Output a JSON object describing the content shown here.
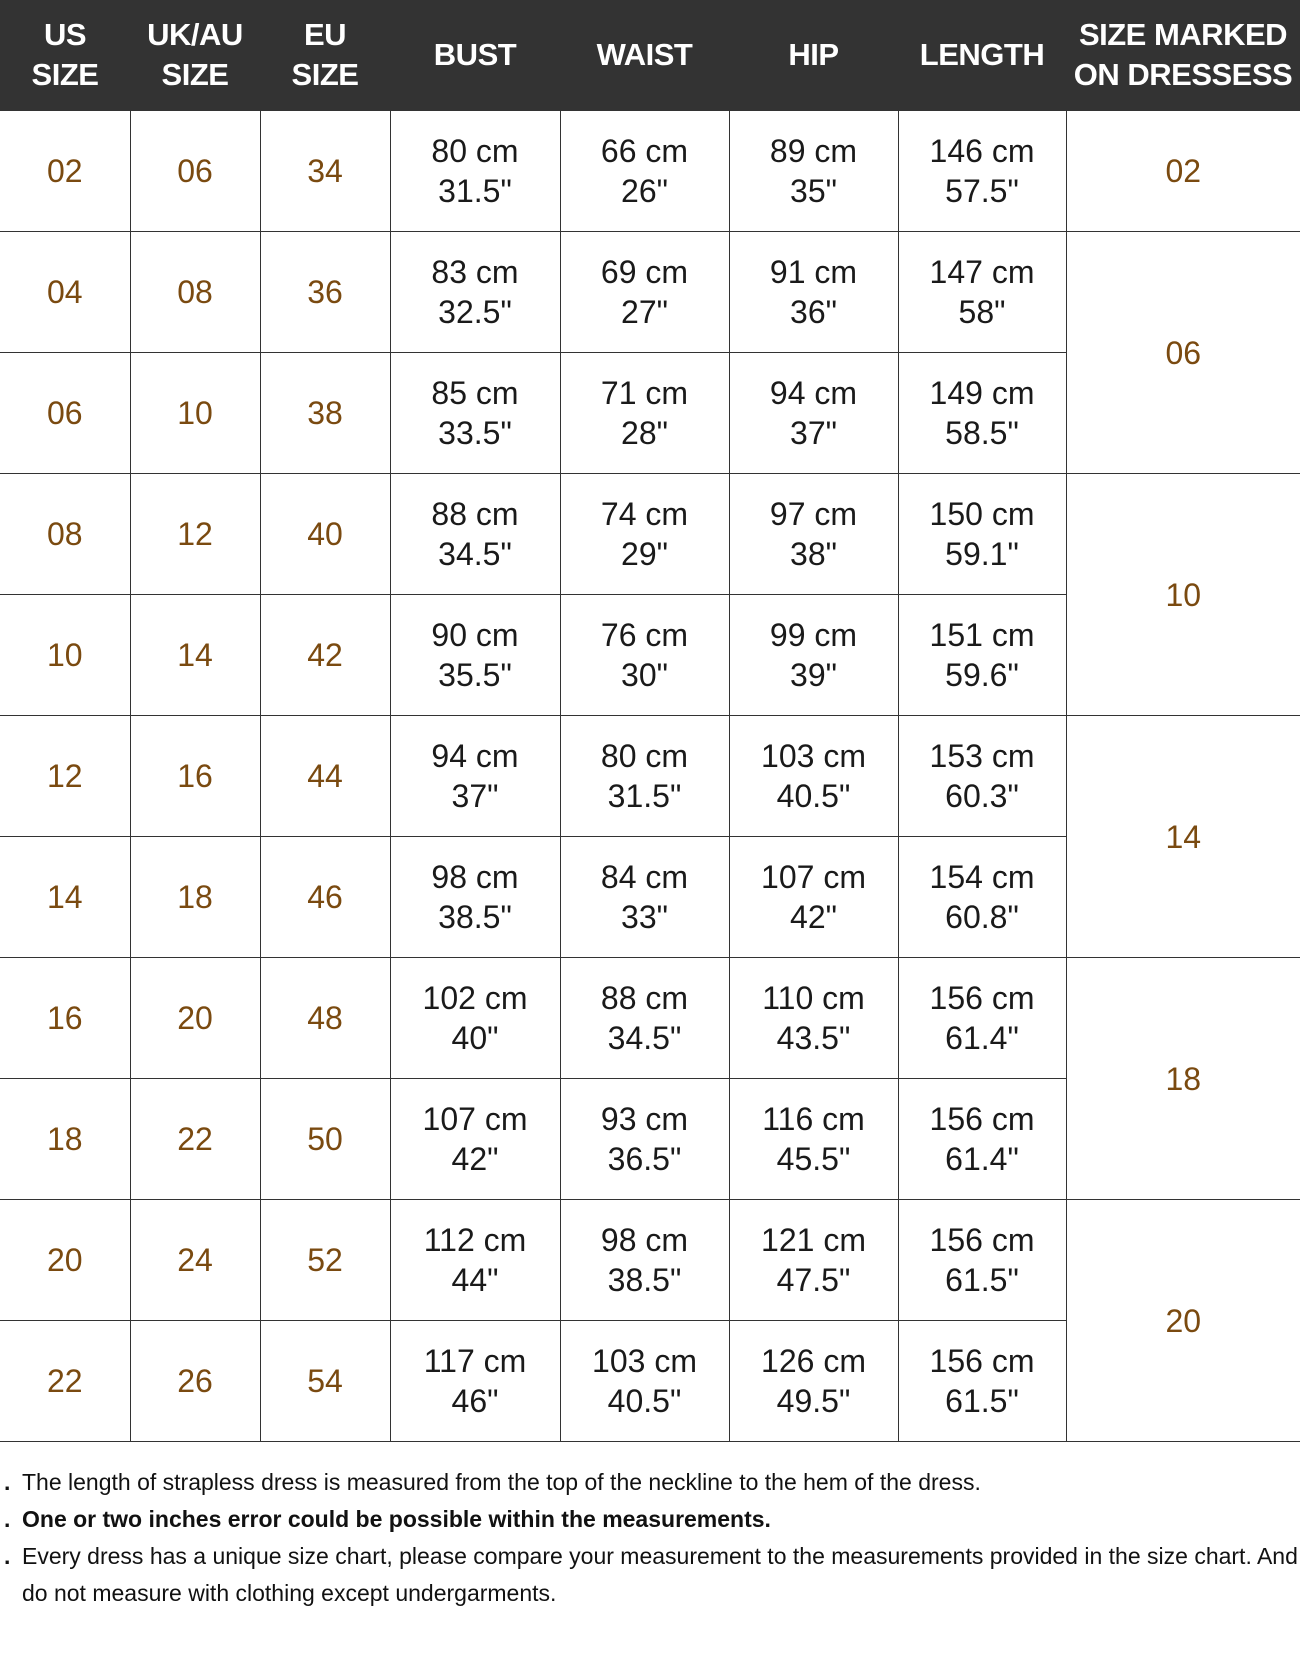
{
  "headers": [
    [
      "US",
      "SIZE"
    ],
    [
      "UK/AU",
      "SIZE"
    ],
    [
      "EU",
      "SIZE"
    ],
    [
      "BUST",
      ""
    ],
    [
      "WAIST",
      ""
    ],
    [
      "HIP",
      ""
    ],
    [
      "LENGTH",
      ""
    ],
    [
      "SIZE MARKED",
      "ON DRESSESS"
    ]
  ],
  "rows": [
    {
      "us": "02",
      "uk": "06",
      "eu": "34",
      "bust": [
        "80 cm",
        "31.5\""
      ],
      "waist": [
        "66 cm",
        "26\""
      ],
      "hip": [
        "89 cm",
        "35\""
      ],
      "length": [
        "146 cm",
        "57.5\""
      ]
    },
    {
      "us": "04",
      "uk": "08",
      "eu": "36",
      "bust": [
        "83 cm",
        "32.5\""
      ],
      "waist": [
        "69 cm",
        "27\""
      ],
      "hip": [
        "91 cm",
        "36\""
      ],
      "length": [
        "147 cm",
        "58\""
      ]
    },
    {
      "us": "06",
      "uk": "10",
      "eu": "38",
      "bust": [
        "85 cm",
        "33.5\""
      ],
      "waist": [
        "71 cm",
        "28\""
      ],
      "hip": [
        "94 cm",
        "37\""
      ],
      "length": [
        "149 cm",
        "58.5\""
      ]
    },
    {
      "us": "08",
      "uk": "12",
      "eu": "40",
      "bust": [
        "88 cm",
        "34.5\""
      ],
      "waist": [
        "74 cm",
        "29\""
      ],
      "hip": [
        "97 cm",
        "38\""
      ],
      "length": [
        "150 cm",
        "59.1\""
      ]
    },
    {
      "us": "10",
      "uk": "14",
      "eu": "42",
      "bust": [
        "90 cm",
        "35.5\""
      ],
      "waist": [
        "76 cm",
        "30\""
      ],
      "hip": [
        "99 cm",
        "39\""
      ],
      "length": [
        "151 cm",
        "59.6\""
      ]
    },
    {
      "us": "12",
      "uk": "16",
      "eu": "44",
      "bust": [
        "94 cm",
        "37\""
      ],
      "waist": [
        "80 cm",
        "31.5\""
      ],
      "hip": [
        "103 cm",
        "40.5\""
      ],
      "length": [
        "153 cm",
        "60.3\""
      ]
    },
    {
      "us": "14",
      "uk": "18",
      "eu": "46",
      "bust": [
        "98 cm",
        "38.5\""
      ],
      "waist": [
        "84 cm",
        "33\""
      ],
      "hip": [
        "107 cm",
        "42\""
      ],
      "length": [
        "154 cm",
        "60.8\""
      ]
    },
    {
      "us": "16",
      "uk": "20",
      "eu": "48",
      "bust": [
        "102 cm",
        "40\""
      ],
      "waist": [
        "88 cm",
        "34.5\""
      ],
      "hip": [
        "110 cm",
        "43.5\""
      ],
      "length": [
        "156 cm",
        "61.4\""
      ]
    },
    {
      "us": "18",
      "uk": "22",
      "eu": "50",
      "bust": [
        "107 cm",
        "42\""
      ],
      "waist": [
        "93 cm",
        "36.5\""
      ],
      "hip": [
        "116 cm",
        "45.5\""
      ],
      "length": [
        "156 cm",
        "61.4\""
      ]
    },
    {
      "us": "20",
      "uk": "24",
      "eu": "52",
      "bust": [
        "112 cm",
        "44\""
      ],
      "waist": [
        "98 cm",
        "38.5\""
      ],
      "hip": [
        "121 cm",
        "47.5\""
      ],
      "length": [
        "156 cm",
        "61.5\""
      ]
    },
    {
      "us": "22",
      "uk": "26",
      "eu": "54",
      "bust": [
        "117 cm",
        "46\""
      ],
      "waist": [
        "103 cm",
        "40.5\""
      ],
      "hip": [
        "126 cm",
        "49.5\""
      ],
      "length": [
        "156 cm",
        "61.5\""
      ]
    }
  ],
  "marked_sizes": [
    {
      "label": "02",
      "rows": 1
    },
    {
      "label": "06",
      "rows": 2
    },
    {
      "label": "10",
      "rows": 2
    },
    {
      "label": "14",
      "rows": 2
    },
    {
      "label": "18",
      "rows": 2
    },
    {
      "label": "20",
      "rows": 2
    }
  ],
  "notes": [
    {
      "text": "The length of strapless dress is measured from the top of the neckline to the hem of the dress.",
      "bold": false
    },
    {
      "text": "One or two inches error could be possible within the measurements.",
      "bold": true
    },
    {
      "text": "Every dress has a unique size chart, please compare your measurement to the measurements provided in the size chart. And do not measure with clothing except undergarments.",
      "bold": false
    }
  ],
  "bullet": ".",
  "colors": {
    "header_bg": "#333333",
    "header_text": "#ffffff",
    "size_text": "#7a4a10",
    "border": "#333333"
  }
}
